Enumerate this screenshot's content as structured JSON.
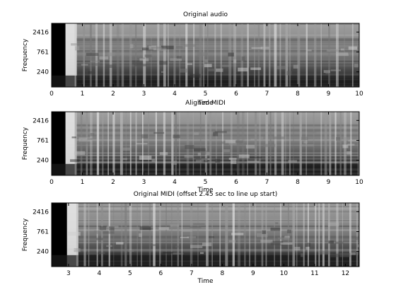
{
  "chart_data": [
    {
      "type": "heatmap",
      "title": "Original audio",
      "xlabel": "",
      "ylabel": "Frequency",
      "xlim": [
        0,
        10
      ],
      "x_ticks": [
        "0",
        "1",
        "2",
        "3",
        "4",
        "5",
        "6",
        "7",
        "8",
        "9",
        "10"
      ],
      "y_ticks": [
        "240",
        "761",
        "2416"
      ],
      "grid": false
    },
    {
      "type": "heatmap",
      "title": "Aligned MIDI",
      "overlapping_text": "Time",
      "xlabel": "Time",
      "ylabel": "Frequency",
      "xlim": [
        0,
        10
      ],
      "x_ticks": [
        "0",
        "1",
        "2",
        "3",
        "4",
        "5",
        "6",
        "7",
        "8",
        "9",
        "10"
      ],
      "y_ticks": [
        "240",
        "761",
        "2416"
      ],
      "grid": false
    },
    {
      "type": "heatmap",
      "title": "Original MIDI (offset 2.45 sec to line up start)",
      "xlabel": "Time",
      "ylabel": "Frequency",
      "xlim": [
        2.45,
        12.45
      ],
      "x_ticks": [
        "3",
        "4",
        "5",
        "6",
        "7",
        "8",
        "9",
        "10",
        "11",
        "12"
      ],
      "y_ticks": [
        "240",
        "761",
        "2416"
      ],
      "grid": false
    }
  ]
}
